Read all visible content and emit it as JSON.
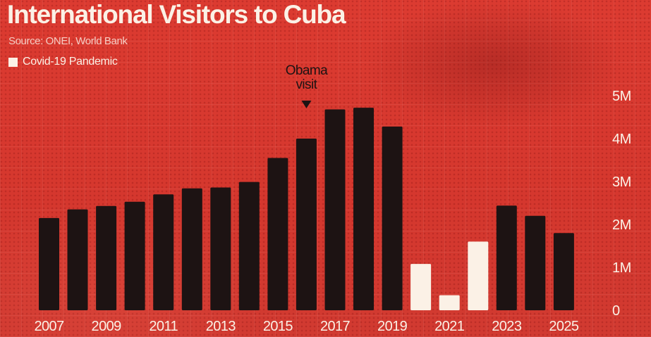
{
  "chart_data": {
    "type": "bar",
    "title": "International Visitors to Cuba",
    "source": "Source: ONEI, World Bank",
    "legend": [
      {
        "label": "Covid-19 Pandemic",
        "color": "#fbf1e6"
      }
    ],
    "legend_position": "top-left",
    "categories": [
      "2007",
      "2008",
      "2009",
      "2010",
      "2011",
      "2012",
      "2013",
      "2014",
      "2015",
      "2016",
      "2017",
      "2018",
      "2019",
      "2020",
      "2021",
      "2022",
      "2023",
      "2024",
      "2025"
    ],
    "x_tick_labels": [
      "2007",
      "2009",
      "2011",
      "2013",
      "2015",
      "2017",
      "2019",
      "2021",
      "2023",
      "2025"
    ],
    "values": [
      2150000,
      2350000,
      2430000,
      2530000,
      2700000,
      2840000,
      2860000,
      2990000,
      3550000,
      4000000,
      4680000,
      4720000,
      4280000,
      1080000,
      350000,
      1600000,
      2440000,
      2200000,
      1800000
    ],
    "highlight": [
      false,
      false,
      false,
      false,
      false,
      false,
      false,
      false,
      false,
      false,
      false,
      false,
      false,
      true,
      true,
      true,
      false,
      false,
      false
    ],
    "ylim": [
      0,
      5000000
    ],
    "y_ticks": [
      0,
      1000000,
      2000000,
      3000000,
      4000000,
      5000000
    ],
    "y_tick_labels": [
      "0",
      "1M",
      "2M",
      "3M",
      "4M",
      "5M"
    ],
    "y_axis_side": "right",
    "grid": true,
    "annotations": [
      {
        "category": "2016",
        "lines": [
          "Obama",
          "visit"
        ],
        "marker": "down-triangle"
      }
    ],
    "colors": {
      "background": "#d8392f",
      "bar": "#1d1313",
      "highlight_bar": "#fbf1e6",
      "text": "#fbf1e6"
    }
  }
}
